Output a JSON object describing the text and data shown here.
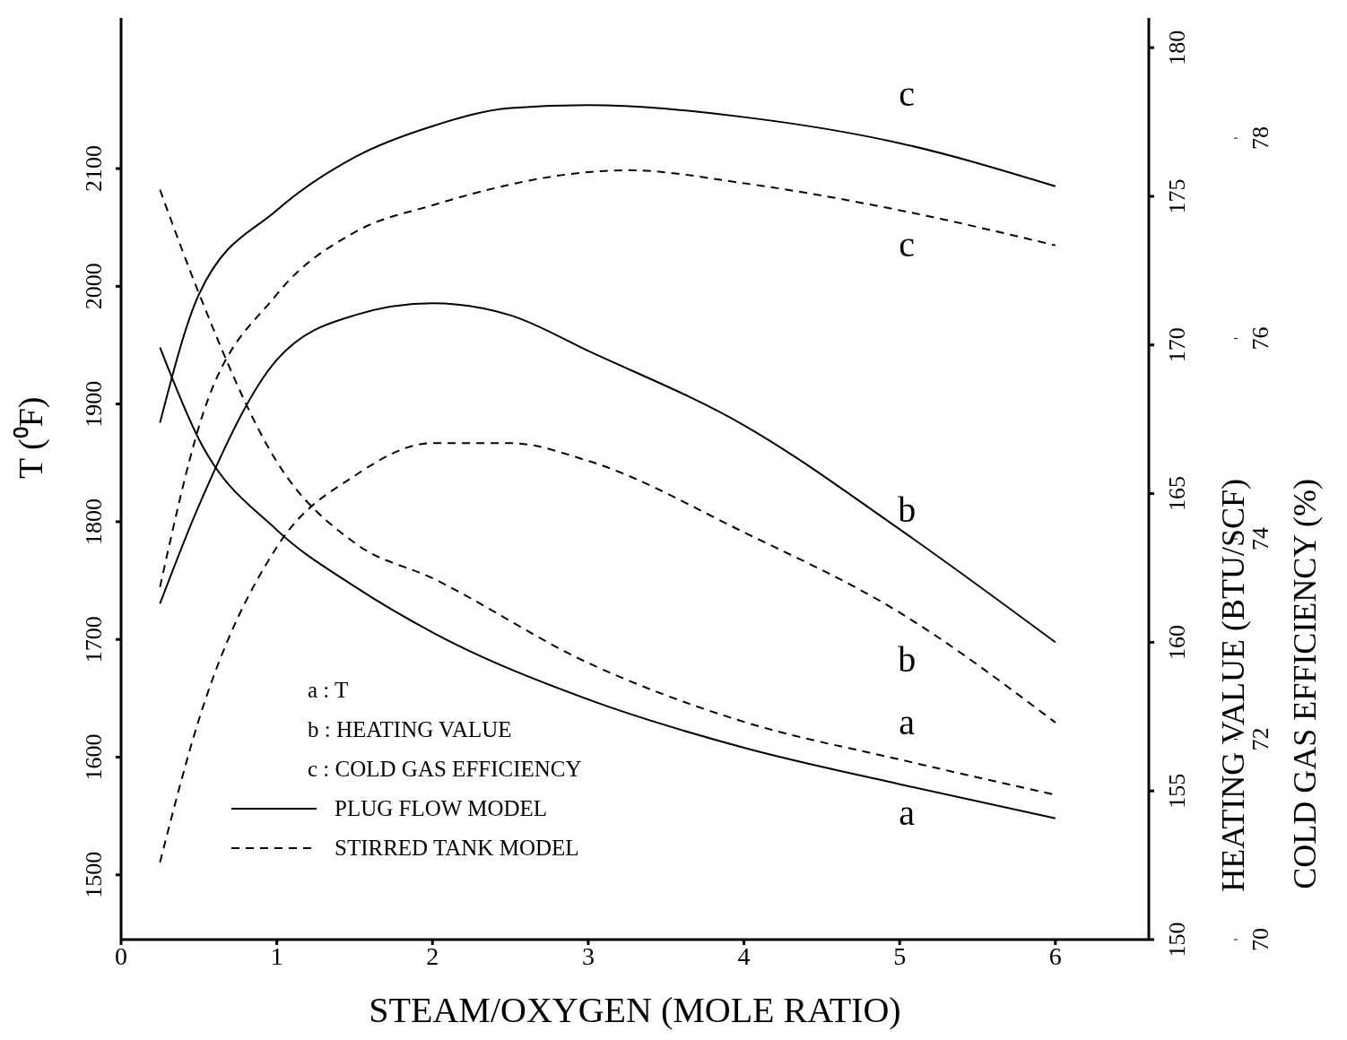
{
  "chart_data": {
    "type": "line",
    "xlabel": "STEAM/OXYGEN (MOLE RATIO)",
    "ylabel": "T (⁰F)",
    "y2label": "HEATING VALUE (BTU/SCF)",
    "y3label": "COLD GAS EFFICIENCY (%)",
    "xlim": [
      0,
      6.6
    ],
    "xticks": [
      0,
      1,
      2,
      3,
      4,
      5,
      6
    ],
    "ylim": [
      1445,
      2228
    ],
    "yticks": [
      1500,
      1600,
      1700,
      1800,
      1900,
      2000,
      2100
    ],
    "y2lim": [
      150,
      181
    ],
    "y2ticks": [
      150,
      155,
      160,
      165,
      170,
      175,
      180
    ],
    "y3lim": [
      70,
      79.2
    ],
    "y3ticks": [
      70,
      72,
      74,
      76,
      78
    ],
    "marker": "none",
    "annotations": [
      "a : T",
      "b : HEATING VALUE",
      "c : COLD GAS EFFICIENCY",
      "PLUG FLOW MODEL",
      "STIRRED TANK MODEL"
    ],
    "series": [
      {
        "name": "c",
        "color": "#000000",
        "axis": "y3",
        "line_style": "solid",
        "x": [
          0.25,
          0.5,
          1,
          1.5,
          2,
          2.5,
          3,
          4,
          5,
          6
        ],
        "values": [
          75.16,
          76.44,
          77.28,
          77.81,
          78.12,
          78.3,
          78.33,
          78.21,
          77.95,
          77.52
        ]
      },
      {
        "name": "c",
        "color": "#000000",
        "axis": "y3",
        "line_style": "dashed",
        "x": [
          0.25,
          0.5,
          1,
          1.5,
          2,
          3,
          3.25,
          4,
          5,
          6
        ],
        "values": [
          73.52,
          75.12,
          76.44,
          77.06,
          77.33,
          77.66,
          77.68,
          77.55,
          77.28,
          76.93
        ]
      },
      {
        "name": "b",
        "color": "#000000",
        "axis": "y2",
        "line_style": "solid",
        "x": [
          0.25,
          0.5,
          1,
          1.5,
          2,
          2.5,
          3,
          4,
          5,
          6
        ],
        "values": [
          161.3,
          164.6,
          169.5,
          171.0,
          171.4,
          171.0,
          169.8,
          167.3,
          163.8,
          160.0
        ]
      },
      {
        "name": "b",
        "color": "#000000",
        "axis": "y2",
        "line_style": "dashed",
        "x": [
          0.25,
          0.5,
          1,
          1.5,
          2,
          2.5,
          3,
          4,
          5,
          6
        ],
        "values": [
          152.6,
          157.4,
          163.2,
          165.6,
          166.7,
          166.7,
          166.1,
          163.7,
          161.0,
          157.3
        ]
      },
      {
        "name": "a",
        "color": "#000000",
        "axis": "y",
        "line_style": "dashed",
        "x": [
          0.25,
          0.5,
          1,
          1.5,
          2,
          3,
          4,
          5,
          6
        ],
        "values": [
          2082,
          1994,
          1851,
          1782,
          1752,
          1680,
          1630,
          1598,
          1568
        ]
      },
      {
        "name": "a",
        "color": "#000000",
        "axis": "y",
        "line_style": "solid",
        "x": [
          0.25,
          0.5,
          1,
          1.5,
          2,
          3,
          4,
          5,
          6
        ],
        "values": [
          1948,
          1870,
          1793,
          1745,
          1706,
          1649,
          1608,
          1577,
          1548
        ]
      }
    ]
  }
}
